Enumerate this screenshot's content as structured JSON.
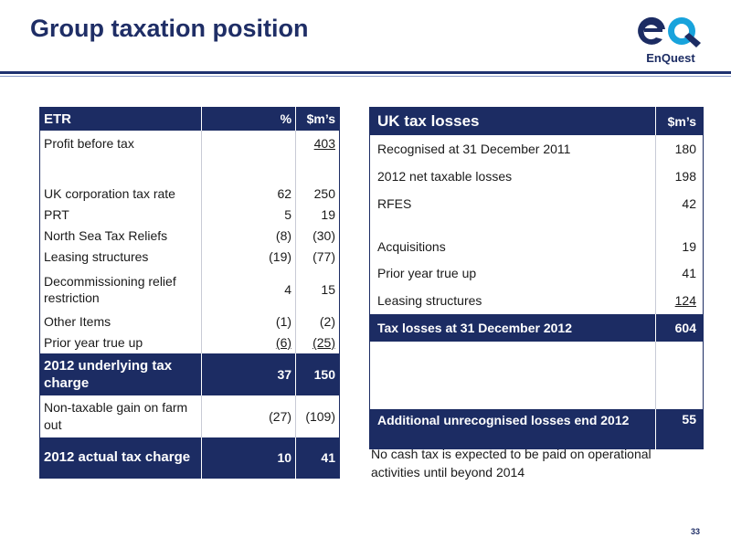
{
  "title": "Group taxation position",
  "logo": {
    "mark": "eQ",
    "text": "EnQuest",
    "colors": {
      "navy": "#1c2c63",
      "cyan": "#18a3dc"
    }
  },
  "etr": {
    "headers": [
      "ETR",
      "%",
      "$m’s"
    ],
    "rows": [
      {
        "label": "Profit before tax",
        "pct": "",
        "val": "403"
      },
      {
        "label": "UK corporation tax rate",
        "pct": "62",
        "val": "250"
      },
      {
        "label": "PRT",
        "pct": "5",
        "val": "19"
      },
      {
        "label": "North Sea Tax Reliefs",
        "pct": "(8)",
        "val": "(30)"
      },
      {
        "label": "Leasing structures",
        "pct": "(19)",
        "val": "(77)"
      },
      {
        "label": "Decommissioning relief restriction",
        "pct": "4",
        "val": "15"
      },
      {
        "label": "Other Items",
        "pct": "(1)",
        "val": "(2)"
      },
      {
        "label": "Prior year true up",
        "pct": "(6)",
        "val": "(25)"
      },
      {
        "label": "2012 underlying tax charge",
        "pct": "37",
        "val": "150"
      },
      {
        "label": "Non-taxable gain on farm out",
        "pct": "(27)",
        "val": "(109)"
      },
      {
        "label": "2012 actual tax charge",
        "pct": "10",
        "val": "41"
      }
    ]
  },
  "uk_losses": {
    "headers": [
      "UK tax losses",
      "$m’s"
    ],
    "rows": [
      {
        "label": "Recognised at 31 December 2011",
        "val": "180"
      },
      {
        "label": "2012 net taxable losses",
        "val": "198"
      },
      {
        "label": "RFES",
        "val": "42"
      },
      {
        "label": "Acquisitions",
        "val": "19"
      },
      {
        "label": "Prior year true up",
        "val": "41"
      },
      {
        "label": "Leasing structures",
        "val": "124"
      },
      {
        "label": "Tax losses at 31 December 2012",
        "val": "604"
      },
      {
        "label": "Additional unrecognised losses end 2012",
        "val": "55"
      }
    ]
  },
  "note": "No cash tax is expected to be paid on operational activities until beyond 2014",
  "page_number": "33"
}
